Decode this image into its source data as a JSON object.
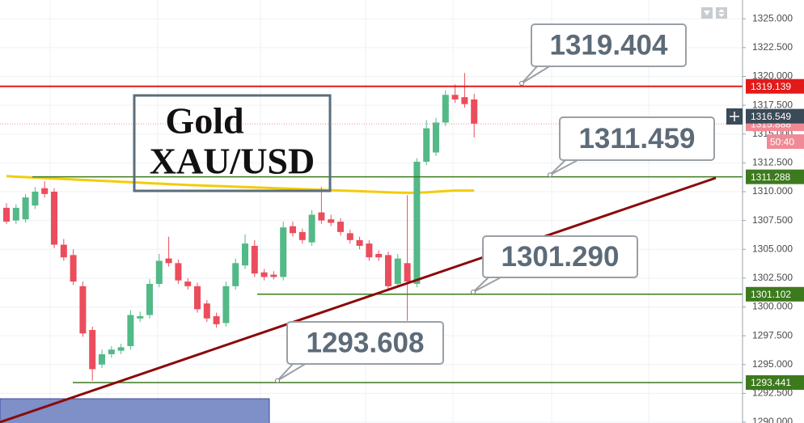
{
  "chart_data": {
    "type": "candlestick",
    "title": "Gold",
    "subtitle": "XAU/USD",
    "up_color": "#53b987",
    "down_color": "#eb4d5c",
    "open": [
      1308.6,
      1307.5,
      1307.6,
      1308.8,
      1310.3,
      1310.0,
      1305.4,
      1304.5,
      1301.8,
      1298.0,
      1295.0,
      1295.9,
      1296.2,
      1296.6,
      1299.0,
      1299.3,
      1302.0,
      1304.2,
      1303.8,
      1302.2,
      1301.8,
      1300.3,
      1299.2,
      1298.6,
      1301.8,
      1303.6,
      1305.3,
      1303.0,
      1302.8,
      1302.6,
      1307.0,
      1306.5,
      1305.6,
      1308.2,
      1307.6,
      1307.4,
      1306.4,
      1305.8,
      1305.5,
      1304.6,
      1304.5,
      1302.0,
      1303.8,
      1302.0,
      1312.6,
      1313.4,
      1316.0,
      1318.4,
      1318.2,
      1318.0
    ],
    "high": [
      1309.0,
      1308.9,
      1309.8,
      1310.4,
      1310.9,
      1310.3,
      1305.9,
      1305.0,
      1302.2,
      1298.3,
      1296.3,
      1296.6,
      1296.8,
      1299.7,
      1299.6,
      1302.4,
      1304.6,
      1306.1,
      1304.1,
      1302.5,
      1302.1,
      1300.6,
      1299.5,
      1302.2,
      1304.2,
      1306.3,
      1305.8,
      1303.3,
      1303.1,
      1307.4,
      1307.4,
      1306.8,
      1308.4,
      1310.4,
      1308.0,
      1307.7,
      1306.7,
      1306.1,
      1305.8,
      1304.9,
      1304.8,
      1304.6,
      1309.7,
      1312.9,
      1316.2,
      1316.4,
      1318.8,
      1319.3,
      1320.3,
      1318.5
    ],
    "low": [
      1307.2,
      1307.2,
      1307.3,
      1308.5,
      1309.5,
      1305.1,
      1304.0,
      1301.9,
      1297.4,
      1293.6,
      1294.7,
      1295.6,
      1295.9,
      1296.3,
      1298.7,
      1299.0,
      1301.7,
      1303.5,
      1302.0,
      1301.5,
      1299.5,
      1298.7,
      1298.2,
      1298.3,
      1301.5,
      1303.3,
      1302.6,
      1302.3,
      1302.4,
      1302.3,
      1306.1,
      1305.5,
      1305.3,
      1307.2,
      1307.0,
      1306.2,
      1305.5,
      1305.0,
      1304.0,
      1304.0,
      1301.5,
      1301.7,
      1298.8,
      1301.7,
      1312.3,
      1313.1,
      1315.7,
      1317.7,
      1317.3,
      1314.7
    ],
    "close": [
      1307.4,
      1308.6,
      1309.5,
      1310.0,
      1309.8,
      1305.4,
      1304.3,
      1302.2,
      1297.7,
      1294.6,
      1295.9,
      1296.3,
      1296.5,
      1299.3,
      1299.2,
      1302.0,
      1304.0,
      1303.8,
      1302.3,
      1301.8,
      1299.8,
      1299.0,
      1298.5,
      1301.8,
      1303.8,
      1305.5,
      1302.9,
      1302.6,
      1302.6,
      1306.9,
      1306.4,
      1305.8,
      1308.0,
      1307.5,
      1307.3,
      1306.5,
      1305.8,
      1305.3,
      1304.3,
      1304.3,
      1301.8,
      1304.2,
      1302.2,
      1312.6,
      1315.5,
      1316.0,
      1318.4,
      1318.0,
      1317.6,
      1315.9
    ],
    "moving_average": {
      "color": "#f2cc0c",
      "values": [
        1311.35,
        1311.3,
        1311.26,
        1311.22,
        1311.18,
        1311.14,
        1311.1,
        1311.06,
        1311.02,
        1310.98,
        1310.94,
        1310.9,
        1310.86,
        1310.82,
        1310.78,
        1310.74,
        1310.7,
        1310.66,
        1310.62,
        1310.58,
        1310.55,
        1310.52,
        1310.49,
        1310.46,
        1310.43,
        1310.4,
        1310.37,
        1310.34,
        1310.31,
        1310.28,
        1310.25,
        1310.22,
        1310.19,
        1310.16,
        1310.13,
        1310.1,
        1310.07,
        1310.04,
        1310.01,
        1309.98,
        1309.95,
        1309.92,
        1309.9,
        1309.9,
        1309.95,
        1310.0,
        1310.05,
        1310.1,
        1310.1,
        1310.1
      ]
    },
    "ylim": [
      1289.93,
      1326.63
    ],
    "yticks": [
      {
        "value": 1290,
        "label": "1290.000"
      },
      {
        "value": 1292.5,
        "label": "1292.500"
      },
      {
        "value": 1295,
        "label": "1295.000"
      },
      {
        "value": 1297.5,
        "label": "1297.500"
      },
      {
        "value": 1300,
        "label": "1300.000"
      },
      {
        "value": 1302.5,
        "label": "1302.500"
      },
      {
        "value": 1305,
        "label": "1305.000"
      },
      {
        "value": 1307.5,
        "label": "1307.500"
      },
      {
        "value": 1310,
        "label": "1310.000"
      },
      {
        "value": 1312.5,
        "label": "1312.500"
      },
      {
        "value": 1315,
        "label": "1315.000"
      },
      {
        "value": 1317.5,
        "label": "1317.500"
      },
      {
        "value": 1320,
        "label": "1320.000"
      },
      {
        "value": 1322.5,
        "label": "1322.500"
      },
      {
        "value": 1325,
        "label": "1325.000"
      }
    ],
    "grid": true,
    "levels": [
      {
        "value": 1319.139,
        "color": "#e31a1a"
      },
      {
        "value": 1311.288,
        "color": "#3d7a1e"
      },
      {
        "value": 1301.102,
        "color": "#3d7a1e"
      },
      {
        "value": 1293.441,
        "color": "#3d7a1e"
      },
      {
        "value": 1315.888,
        "color": "#f08a96"
      },
      {
        "value": 1316.549,
        "color": "#3b4a57"
      }
    ],
    "timer": "50:40",
    "callouts": [
      1319.404,
      1311.459,
      {
        "value": 1301.29,
        "label": "1301.290"
      },
      1293.608
    ]
  }
}
